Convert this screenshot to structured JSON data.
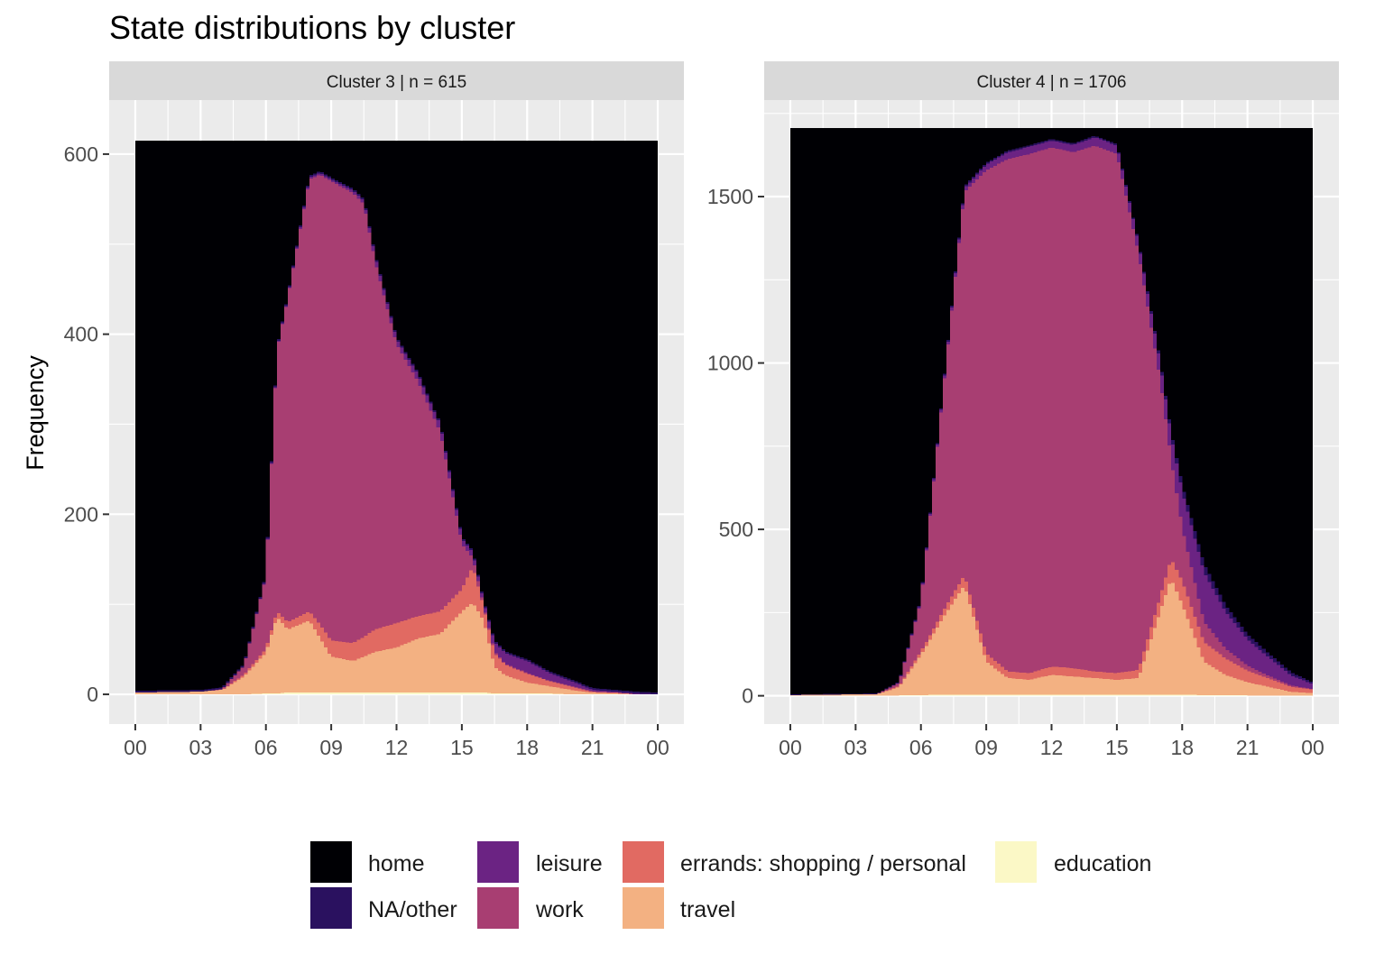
{
  "chart_data": {
    "type": "area",
    "title": "State distributions by cluster",
    "ylabel": "Frequency",
    "xlabel": "",
    "x_tick_labels": [
      "00",
      "03",
      "06",
      "09",
      "12",
      "15",
      "18",
      "21",
      "00"
    ],
    "x_unit": "hour of day",
    "stack_order_bottom_to_top": [
      "education",
      "travel",
      "errands: shopping / personal",
      "work",
      "leisure",
      "NA/other",
      "home"
    ],
    "legend": {
      "placement": "bottom",
      "items": [
        {
          "label": "home",
          "color": "#000004"
        },
        {
          "label": "NA/other",
          "color": "#2a115f"
        },
        {
          "label": "leisure",
          "color": "#6b2383"
        },
        {
          "label": "work",
          "color": "#a83e72"
        },
        {
          "label": "errands: shopping / personal",
          "color": "#e16a62"
        },
        {
          "label": "travel",
          "color": "#f3b182"
        },
        {
          "label": "education",
          "color": "#fbf8c6"
        }
      ]
    },
    "panels": [
      {
        "strip": "Cluster 3  |  n = 615",
        "y_ticks": [
          0,
          200,
          400,
          600
        ],
        "y_tick_labels": [
          "0",
          "200",
          "400",
          "600"
        ],
        "ylim": [
          -33,
          660
        ],
        "total": 615,
        "x": [
          0,
          3,
          4,
          5,
          6,
          6.5,
          7,
          8,
          8.5,
          9,
          10,
          10.5,
          11,
          12,
          13,
          14,
          15,
          15.5,
          16,
          16.5,
          17,
          18,
          19,
          20,
          21,
          22,
          23,
          24
        ],
        "series": [
          {
            "name": "education",
            "values": [
              0,
              0,
              0,
              0,
              1,
              1,
              2,
              2,
              2,
              2,
              2,
              2,
              2,
              2,
              2,
              2,
              2,
              2,
              2,
              1,
              1,
              1,
              1,
              0,
              0,
              0,
              0,
              0
            ]
          },
          {
            "name": "travel",
            "values": [
              2,
              3,
              5,
              20,
              45,
              85,
              70,
              80,
              60,
              40,
              35,
              40,
              45,
              50,
              60,
              65,
              90,
              100,
              80,
              30,
              20,
              12,
              8,
              5,
              2,
              1,
              0,
              0
            ]
          },
          {
            "name": "errands: shopping / personal",
            "values": [
              0,
              0,
              0,
              2,
              4,
              6,
              8,
              10,
              15,
              18,
              20,
              22,
              25,
              27,
              25,
              25,
              25,
              40,
              15,
              15,
              12,
              10,
              6,
              4,
              1,
              1,
              0,
              0
            ]
          },
          {
            "name": "work",
            "values": [
              0,
              0,
              1,
              10,
              80,
              290,
              360,
              480,
              500,
              510,
              500,
              480,
              410,
              310,
              260,
              200,
              50,
              10,
              2,
              2,
              1,
              1,
              0,
              0,
              0,
              0,
              0,
              0
            ]
          },
          {
            "name": "leisure",
            "values": [
              0,
              0,
              0,
              0,
              1,
              1,
              1,
              2,
              2,
              2,
              3,
              4,
              6,
              6,
              8,
              8,
              6,
              6,
              4,
              10,
              12,
              13,
              9,
              6,
              2,
              1,
              1,
              0
            ]
          },
          {
            "name": "NA/other",
            "values": [
              2,
              2,
              2,
              2,
              2,
              2,
              2,
              2,
              2,
              2,
              2,
              2,
              2,
              2,
              2,
              2,
              2,
              2,
              2,
              2,
              2,
              2,
              2,
              2,
              2,
              2,
              2,
              2
            ]
          }
        ]
      },
      {
        "strip": "Cluster 4  |  n = 1706",
        "y_ticks": [
          0,
          500,
          1000,
          1500
        ],
        "y_tick_labels": [
          "0",
          "500",
          "1000",
          "1500"
        ],
        "ylim": [
          -85,
          1790
        ],
        "total": 1706,
        "x": [
          0,
          4,
          5,
          6,
          7,
          8,
          9,
          10,
          11,
          12,
          13,
          14,
          15,
          16,
          17,
          17.5,
          18,
          19,
          20,
          21,
          22,
          23,
          24
        ],
        "series": [
          {
            "name": "education",
            "values": [
              0,
              0,
              1,
              2,
              3,
              3,
              3,
              3,
              3,
              3,
              3,
              3,
              3,
              3,
              3,
              3,
              3,
              2,
              2,
              1,
              1,
              0,
              0
            ]
          },
          {
            "name": "travel",
            "values": [
              2,
              5,
              25,
              120,
              230,
              330,
              100,
              50,
              45,
              60,
              55,
              50,
              45,
              50,
              250,
              350,
              270,
              100,
              60,
              40,
              25,
              12,
              8
            ]
          },
          {
            "name": "errands: shopping / personal",
            "values": [
              0,
              0,
              3,
              10,
              20,
              30,
              25,
              20,
              20,
              25,
              25,
              20,
              20,
              25,
              45,
              60,
              70,
              60,
              50,
              35,
              25,
              15,
              10
            ]
          },
          {
            "name": "work",
            "values": [
              0,
              0,
              10,
              150,
              650,
              1150,
              1450,
              1540,
              1560,
              1560,
              1550,
              1580,
              1560,
              1250,
              650,
              300,
              160,
              60,
              30,
              15,
              8,
              4,
              2
            ]
          },
          {
            "name": "leisure",
            "values": [
              0,
              0,
              1,
              4,
              8,
              12,
              18,
              20,
              22,
              20,
              22,
              25,
              25,
              30,
              50,
              70,
              110,
              150,
              110,
              80,
              55,
              30,
              15
            ]
          },
          {
            "name": "NA/other",
            "values": [
              2,
              2,
              2,
              4,
              5,
              6,
              5,
              5,
              5,
              5,
              5,
              5,
              5,
              5,
              10,
              12,
              20,
              25,
              20,
              15,
              12,
              10,
              5
            ]
          }
        ]
      }
    ]
  }
}
